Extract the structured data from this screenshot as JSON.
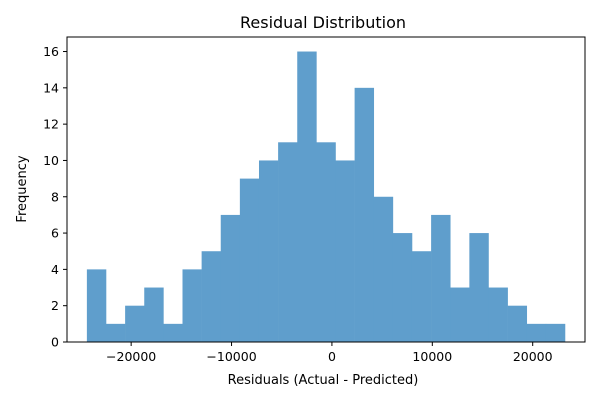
{
  "chart_data": {
    "type": "bar",
    "title": "Residual Distribution",
    "xlabel": "Residuals (Actual - Predicted)",
    "ylabel": "Frequency",
    "bar_color": "#5f9ecc",
    "grid": false,
    "xlim": [
      -26390,
      25210
    ],
    "ylim": [
      0,
      16.8
    ],
    "x_ticks": [
      {
        "value": -20000,
        "label": "−20000"
      },
      {
        "value": -10000,
        "label": "−10000"
      },
      {
        "value": 0,
        "label": "0"
      },
      {
        "value": 10000,
        "label": "10000"
      },
      {
        "value": 20000,
        "label": "20000"
      }
    ],
    "y_ticks": [
      0,
      2,
      4,
      6,
      8,
      10,
      12,
      14,
      16
    ],
    "bin_start": -24410,
    "bin_width": 1905,
    "values": [
      4,
      1,
      2,
      3,
      1,
      4,
      5,
      7,
      9,
      10,
      11,
      16,
      11,
      10,
      14,
      8,
      6,
      5,
      7,
      3,
      6,
      3,
      2,
      1,
      1
    ]
  }
}
